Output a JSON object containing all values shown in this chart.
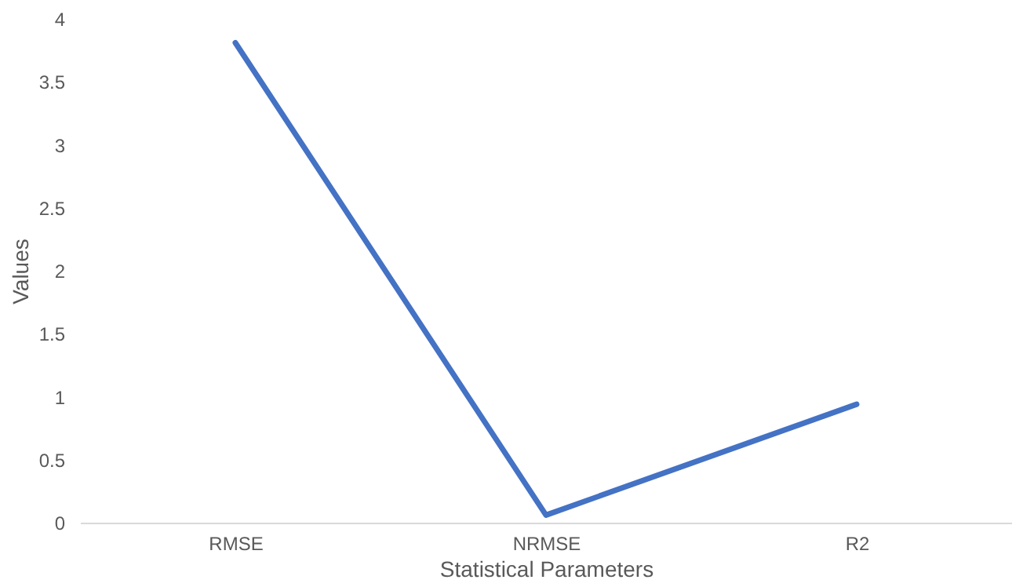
{
  "chart_data": {
    "type": "line",
    "xlabel": "Statistical Parameters",
    "ylabel": "Values",
    "categories": [
      "RMSE",
      "NRMSE",
      "R2"
    ],
    "series": [
      {
        "color": "#4472c4",
        "values": [
          3.81,
          0.06,
          0.94
        ]
      }
    ],
    "ylim": [
      0,
      4
    ],
    "yticks": [
      0,
      0.5,
      1,
      1.5,
      2,
      2.5,
      3,
      3.5,
      4
    ],
    "grid": false,
    "legend": false,
    "marker": "none",
    "line_style": "solid"
  }
}
